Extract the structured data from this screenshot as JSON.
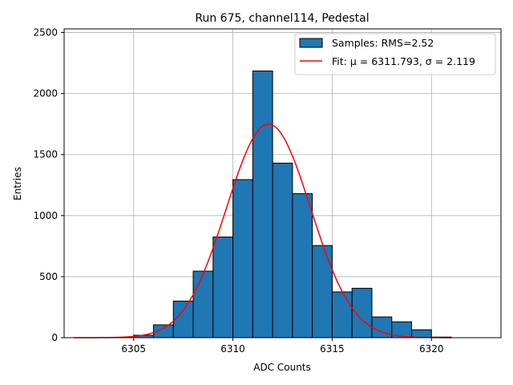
{
  "chart_data": {
    "type": "bar",
    "title": "Run 675, channel114, Pedestal",
    "xlabel": "ADC Counts",
    "ylabel": "Entries",
    "xlim": [
      6301.5,
      6323.5
    ],
    "ylim": [
      0,
      2530
    ],
    "xticks": [
      6305,
      6310,
      6315,
      6320
    ],
    "yticks": [
      0,
      500,
      1000,
      1500,
      2000,
      2500
    ],
    "grid": true,
    "legend_position": "top-right",
    "series": [
      {
        "name": "Samples: RMS=2.52",
        "kind": "histogram",
        "color": "#1f77b4",
        "bin_edges": [
          6305,
          6306,
          6307,
          6308,
          6309,
          6310,
          6311,
          6312,
          6313,
          6314,
          6315,
          6316,
          6317,
          6318,
          6319,
          6320,
          6321
        ],
        "values": [
          20,
          105,
          300,
          545,
          825,
          1295,
          2185,
          1430,
          1180,
          755,
          375,
          405,
          170,
          130,
          65,
          5
        ]
      },
      {
        "name": "Fit: μ = 6311.793, σ = 2.119",
        "kind": "gaussian",
        "color": "#ff0000",
        "amplitude": 1750,
        "mu": 6311.793,
        "sigma": 2.119,
        "x_range": [
          6302,
          6321
        ]
      }
    ]
  }
}
